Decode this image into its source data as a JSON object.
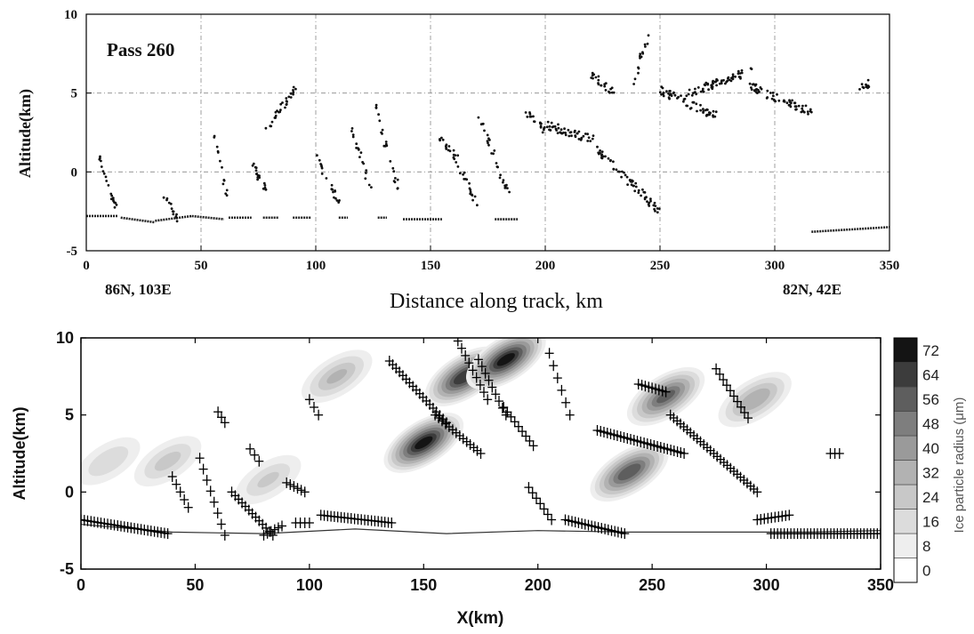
{
  "chart_data": [
    {
      "type": "scatter",
      "panel_title": "Pass 260",
      "xlabel": "Distance along track, km",
      "ylabel": "Altitude(km)",
      "xlim": [
        0,
        350
      ],
      "ylim": [
        -5,
        10
      ],
      "xticks": [
        "0",
        "50",
        "100",
        "150",
        "200",
        "250",
        "300",
        "350"
      ],
      "yticks": [
        "-5",
        "0",
        "5",
        "10"
      ],
      "grid": true,
      "annotations": [
        {
          "text": "86N, 103E",
          "position": "below-left"
        },
        {
          "text": "82N, 42E",
          "position": "below-right"
        }
      ],
      "series": [
        {
          "surface_segments": [
            {
              "x": [
                0,
                14
              ],
              "y": [
                -2.8,
                -2.8
              ]
            },
            {
              "x": [
                15,
                30
              ],
              "y": [
                -2.9,
                -3.2
              ]
            },
            {
              "x": [
                30,
                46
              ],
              "y": [
                -3.1,
                -2.8
              ]
            },
            {
              "x": [
                46,
                60
              ],
              "y": [
                -2.8,
                -3.0
              ]
            },
            {
              "x": [
                62,
                72
              ],
              "y": [
                -2.9,
                -2.9
              ]
            },
            {
              "x": [
                77,
                84
              ],
              "y": [
                -2.9,
                -2.9
              ]
            },
            {
              "x": [
                90,
                98
              ],
              "y": [
                -2.9,
                -2.9
              ]
            },
            {
              "x": [
                110,
                114
              ],
              "y": [
                -2.9,
                -2.9
              ]
            },
            {
              "x": [
                127,
                131
              ],
              "y": [
                -2.9,
                -2.9
              ]
            },
            {
              "x": [
                138,
                155
              ],
              "y": [
                -3.0,
                -3.0
              ]
            },
            {
              "x": [
                178,
                188
              ],
              "y": [
                -3.0,
                -3.0
              ]
            },
            {
              "x": [
                316,
                350
              ],
              "y": [
                -3.8,
                -3.5
              ]
            }
          ],
          "cloud_bands": [
            {
              "x": [
                4,
                13
              ],
              "y": [
                1.5,
                -2.2
              ]
            },
            {
              "x": [
                34,
                40
              ],
              "y": [
                -1.5,
                -3.0
              ]
            },
            {
              "x": [
                56,
                62
              ],
              "y": [
                2.2,
                -2.2
              ]
            },
            {
              "x": [
                72,
                80
              ],
              "y": [
                0.5,
                -1.5
              ]
            },
            {
              "x": [
                78,
                91
              ],
              "y": [
                2.5,
                5.3
              ]
            },
            {
              "x": [
                101,
                110
              ],
              "y": [
                0.8,
                -2.0
              ]
            },
            {
              "x": [
                116,
                124
              ],
              "y": [
                2.8,
                -1.2
              ]
            },
            {
              "x": [
                126,
                136
              ],
              "y": [
                4.2,
                -1.2
              ]
            },
            {
              "x": [
                154,
                162
              ],
              "y": [
                2.2,
                0.8
              ]
            },
            {
              "x": [
                162,
                170
              ],
              "y": [
                0.5,
                -2.0
              ]
            },
            {
              "x": [
                171,
                184
              ],
              "y": [
                3.5,
                -1.5
              ]
            },
            {
              "x": [
                192,
                200
              ],
              "y": [
                3.8,
                2.5
              ]
            },
            {
              "x": [
                200,
                222
              ],
              "y": [
                3.0,
                2.0
              ]
            },
            {
              "x": [
                222,
                250
              ],
              "y": [
                1.5,
                -2.5
              ]
            },
            {
              "x": [
                220,
                230
              ],
              "y": [
                6.2,
                5.0
              ]
            },
            {
              "x": [
                238,
                245
              ],
              "y": [
                5.5,
                8.8
              ]
            },
            {
              "x": [
                250,
                275
              ],
              "y": [
                5.2,
                3.5
              ]
            },
            {
              "x": [
                262,
                290
              ],
              "y": [
                5.0,
                6.4
              ]
            },
            {
              "x": [
                288,
                316
              ],
              "y": [
                5.5,
                3.8
              ]
            },
            {
              "x": [
                336,
                341
              ],
              "y": [
                5.3,
                5.6
              ]
            }
          ]
        }
      ]
    },
    {
      "type": "heatmap",
      "xlabel": "X(km)",
      "ylabel": "Altitude(km)",
      "xlim": [
        0,
        350
      ],
      "ylim": [
        -5,
        10
      ],
      "xticks": [
        "0",
        "50",
        "100",
        "150",
        "200",
        "250",
        "300",
        "350"
      ],
      "yticks": [
        "-5",
        "0",
        "5",
        "10"
      ],
      "colorbar": {
        "label": "Ice particle radius (μm)",
        "levels": [
          "0",
          "8",
          "16",
          "24",
          "32",
          "40",
          "48",
          "56",
          "64",
          "72"
        ],
        "colors": [
          "#ffffff",
          "#eeeeee",
          "#dcdcdc",
          "#c8c8c8",
          "#b2b2b2",
          "#9a9a9a",
          "#7e7e7e",
          "#5e5e5e",
          "#3c3c3c",
          "#141414"
        ]
      },
      "contour_features": [
        {
          "x_center": 150,
          "y_center": 3.2,
          "peak": 74
        },
        {
          "x_center": 168,
          "y_center": 7.5,
          "peak": 70
        },
        {
          "x_center": 186,
          "y_center": 8.6,
          "peak": 74
        },
        {
          "x_center": 240,
          "y_center": 1.3,
          "peak": 62
        },
        {
          "x_center": 256,
          "y_center": 6.2,
          "peak": 58
        },
        {
          "x_center": 295,
          "y_center": 6.0,
          "peak": 40
        },
        {
          "x_center": 112,
          "y_center": 7.5,
          "peak": 34
        },
        {
          "x_center": 38,
          "y_center": 2.0,
          "peak": 28
        },
        {
          "x_center": 12,
          "y_center": 2.0,
          "peak": 24
        },
        {
          "x_center": 82,
          "y_center": 0.8,
          "peak": 26
        }
      ],
      "terrain": {
        "x": [
          0,
          40,
          80,
          120,
          160,
          200,
          240,
          280,
          320,
          350
        ],
        "y": [
          -2.1,
          -2.6,
          -2.7,
          -2.4,
          -2.7,
          -2.5,
          -2.6,
          -2.6,
          -2.6,
          -2.5
        ]
      },
      "observations": [
        {
          "x": [
            0,
            38
          ],
          "y": [
            -1.8,
            -2.7
          ]
        },
        {
          "x": [
            40,
            47
          ],
          "y": [
            1.0,
            -1.0
          ]
        },
        {
          "x": [
            52,
            63
          ],
          "y": [
            2.2,
            -2.8
          ]
        },
        {
          "x": [
            60,
            63
          ],
          "y": [
            5.2,
            4.5
          ]
        },
        {
          "x": [
            66,
            84
          ],
          "y": [
            0.0,
            -2.8
          ]
        },
        {
          "x": [
            74,
            78
          ],
          "y": [
            2.8,
            2.0
          ]
        },
        {
          "x": [
            80,
            88
          ],
          "y": [
            -2.8,
            -2.2
          ]
        },
        {
          "x": [
            90,
            98
          ],
          "y": [
            0.6,
            0.0
          ]
        },
        {
          "x": [
            94,
            100
          ],
          "y": [
            -2.0,
            -2.0
          ]
        },
        {
          "x": [
            100,
            104
          ],
          "y": [
            6.0,
            5.0
          ]
        },
        {
          "x": [
            105,
            136
          ],
          "y": [
            -1.5,
            -2.0
          ]
        },
        {
          "x": [
            135,
            160
          ],
          "y": [
            8.5,
            4.5
          ]
        },
        {
          "x": [
            155,
            175
          ],
          "y": [
            5.0,
            2.5
          ]
        },
        {
          "x": [
            165,
            178
          ],
          "y": [
            9.8,
            6.0
          ]
        },
        {
          "x": [
            174,
            186
          ],
          "y": [
            8.6,
            5.0
          ]
        },
        {
          "x": [
            185,
            198
          ],
          "y": [
            5.5,
            3.0
          ]
        },
        {
          "x": [
            196,
            206
          ],
          "y": [
            0.3,
            -1.8
          ]
        },
        {
          "x": [
            205,
            214
          ],
          "y": [
            9.0,
            5.0
          ]
        },
        {
          "x": [
            212,
            238
          ],
          "y": [
            -1.8,
            -2.7
          ]
        },
        {
          "x": [
            226,
            264
          ],
          "y": [
            4.0,
            2.5
          ]
        },
        {
          "x": [
            244,
            256
          ],
          "y": [
            7.0,
            6.5
          ]
        },
        {
          "x": [
            258,
            296
          ],
          "y": [
            5.0,
            0.0
          ]
        },
        {
          "x": [
            278,
            292
          ],
          "y": [
            8.0,
            4.8
          ]
        },
        {
          "x": [
            296,
            310
          ],
          "y": [
            -1.8,
            -1.5
          ]
        },
        {
          "x": [
            302,
            350
          ],
          "y": [
            -2.7,
            -2.7
          ]
        },
        {
          "x": [
            328,
            332
          ],
          "y": [
            2.5,
            2.5
          ]
        }
      ]
    }
  ]
}
